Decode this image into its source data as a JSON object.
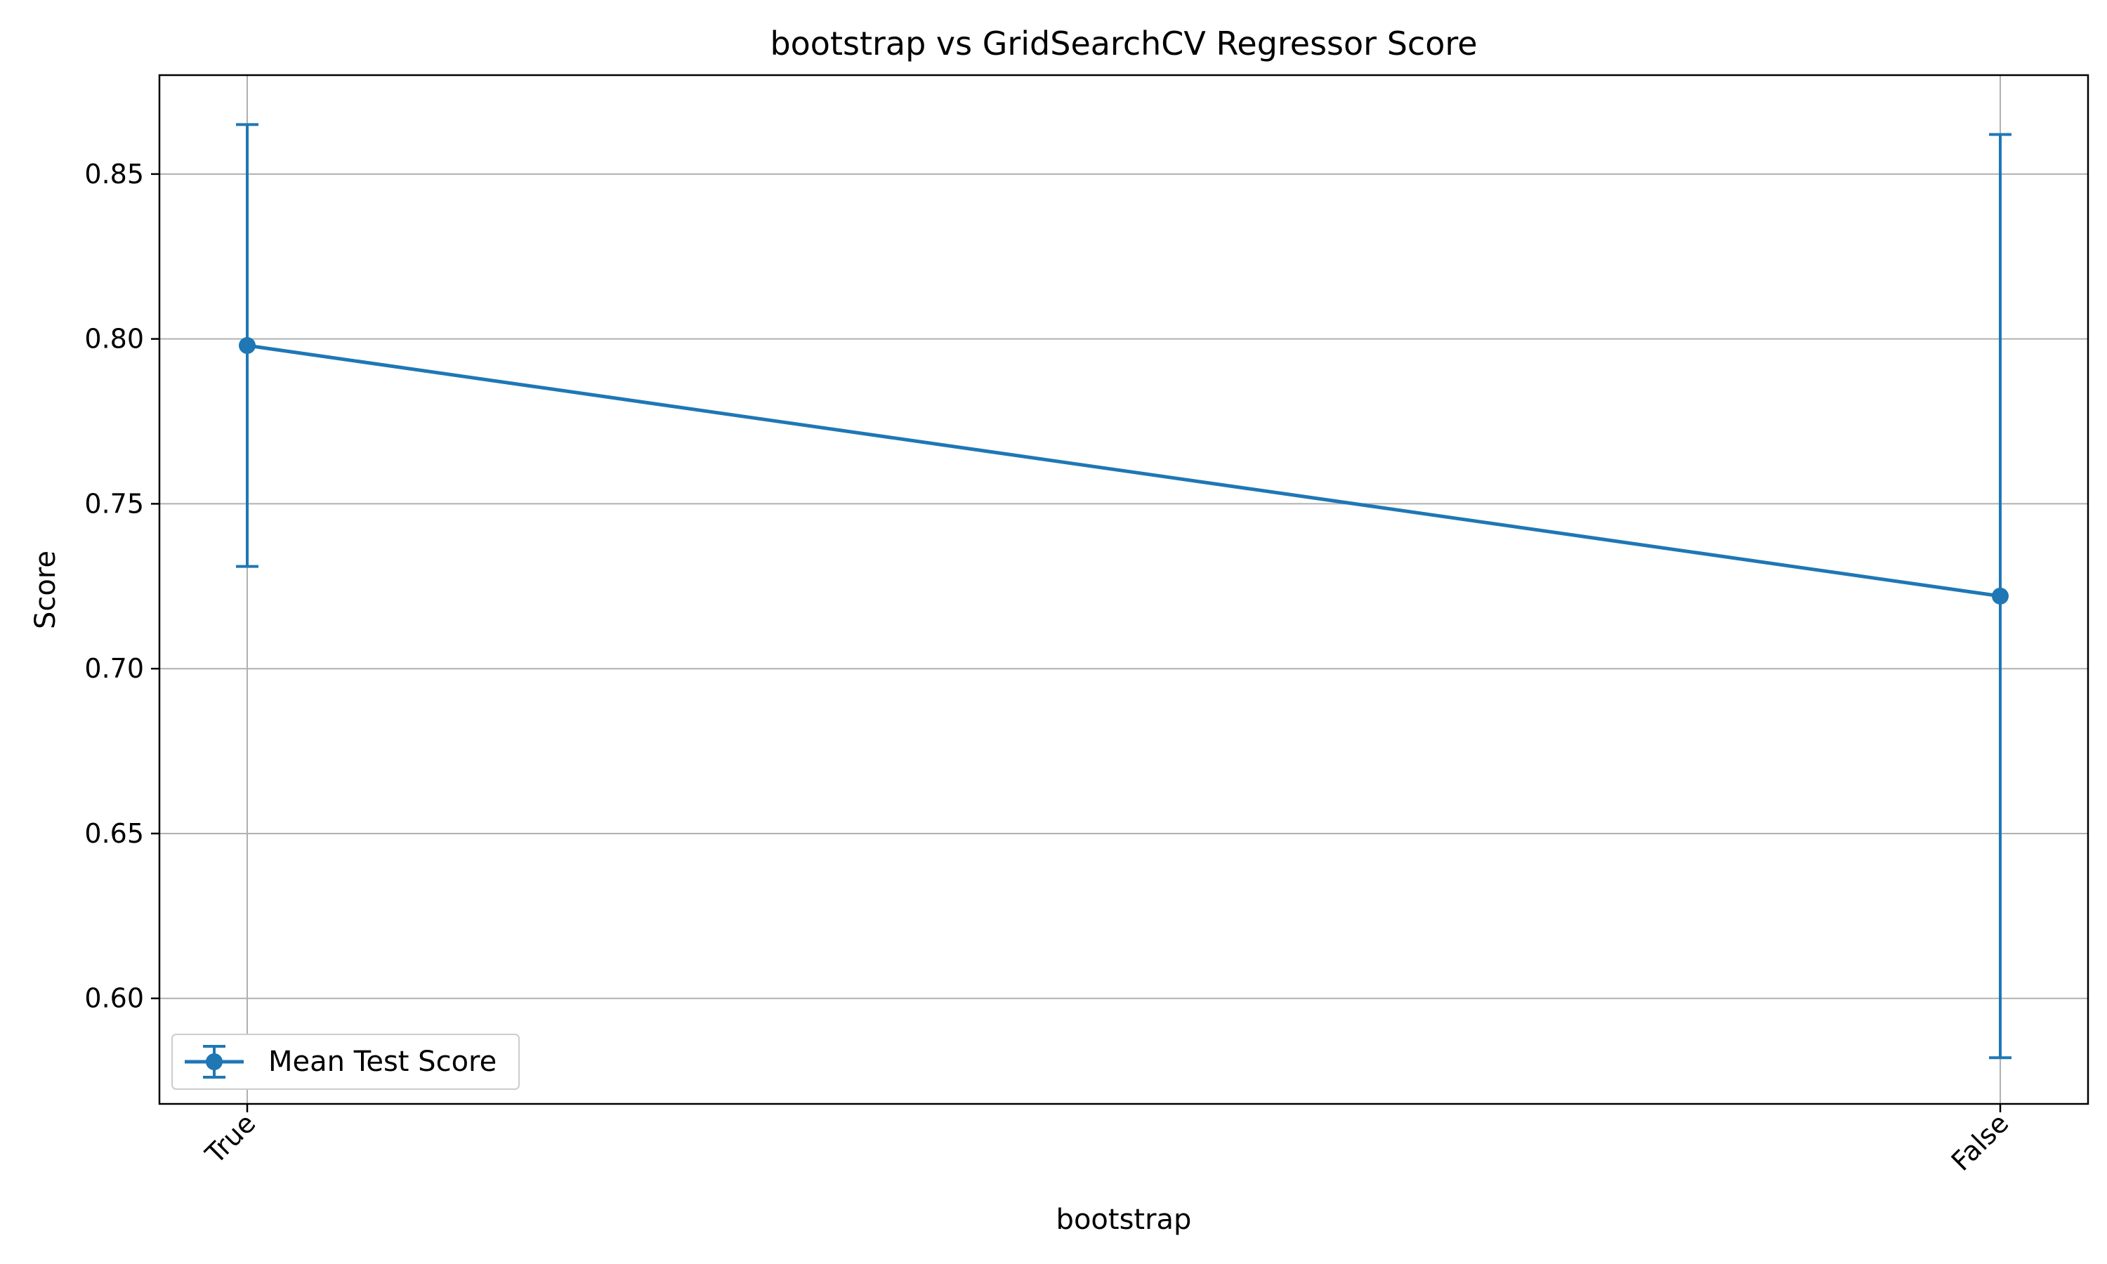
{
  "chart_data": {
    "type": "line",
    "title": "bootstrap vs GridSearchCV Regressor Score",
    "xlabel": "bootstrap",
    "ylabel": "Score",
    "categories": [
      "True",
      "False"
    ],
    "ylim": [
      0.568,
      0.88
    ],
    "yticks": [
      0.6,
      0.65,
      0.7,
      0.75,
      0.8,
      0.85
    ],
    "ytick_labels": [
      "0.60",
      "0.65",
      "0.70",
      "0.75",
      "0.80",
      "0.85"
    ],
    "grid": true,
    "legend_position": "lower-left",
    "series": [
      {
        "name": "Mean Test Score",
        "values": [
          0.798,
          0.722
        ],
        "error_low": [
          0.731,
          0.582
        ],
        "error_high": [
          0.865,
          0.862
        ],
        "color": "#1f77b4"
      }
    ]
  }
}
